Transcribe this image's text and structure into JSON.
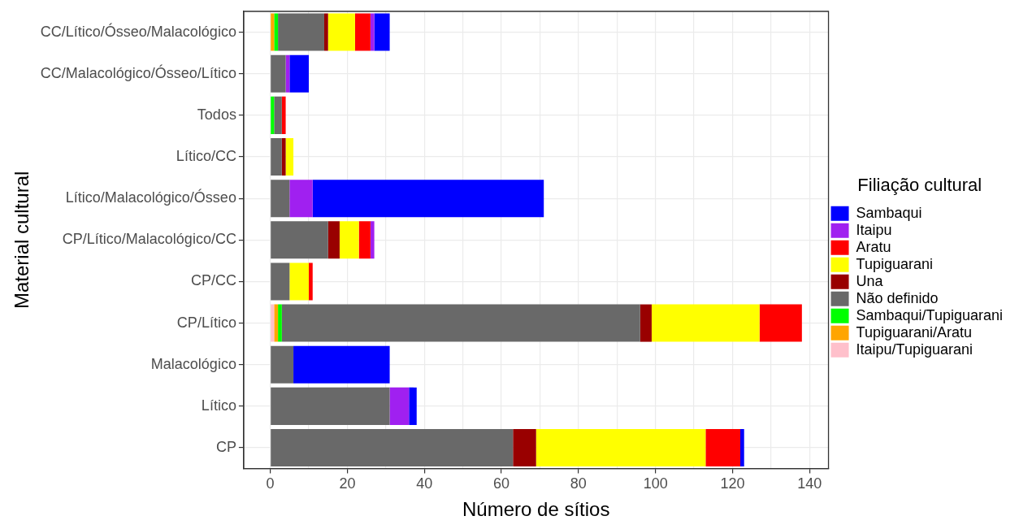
{
  "chart_data": {
    "type": "bar",
    "orientation": "horizontal",
    "stacked": true,
    "xlabel": "Número de sítios",
    "ylabel": "Material cultural",
    "legend_title": "Filiação cultural",
    "categories": [
      "CC/Lítico/Ósseo/Malacológico",
      "CC/Malacológico/Ósseo/Lítico",
      "Todos",
      "Lítico/CC",
      "Lítico/Malacológico/Ósseo",
      "CP/Lítico/Malacológico/CC",
      "CP/CC",
      "CP/Lítico",
      "Malacológico",
      "Lítico",
      "CP"
    ],
    "series": [
      {
        "name": "Itaipu/Tupiguarani",
        "color": "#ffc0cb",
        "values": [
          0,
          0,
          0,
          0,
          0,
          0,
          0,
          1,
          0,
          0,
          0
        ]
      },
      {
        "name": "Tupiguarani/Aratu",
        "color": "#ffa500",
        "values": [
          1,
          0,
          0,
          0,
          0,
          0,
          0,
          1,
          0,
          0,
          0
        ]
      },
      {
        "name": "Sambaqui/Tupiguarani",
        "color": "#00ff00",
        "values": [
          1,
          0,
          1,
          0,
          0,
          0,
          0,
          1,
          0,
          0,
          0
        ]
      },
      {
        "name": "Não definido",
        "color": "#696969",
        "values": [
          12,
          4,
          2,
          3,
          5,
          15,
          5,
          93,
          6,
          31,
          63
        ]
      },
      {
        "name": "Una",
        "color": "#990000",
        "values": [
          1,
          0,
          0,
          1,
          0,
          3,
          0,
          3,
          0,
          0,
          6
        ]
      },
      {
        "name": "Tupiguarani",
        "color": "#ffff00",
        "values": [
          7,
          0,
          0,
          2,
          0,
          5,
          5,
          28,
          0,
          0,
          44
        ]
      },
      {
        "name": "Aratu",
        "color": "#ff0000",
        "values": [
          4,
          0,
          1,
          0,
          0,
          3,
          1,
          11,
          0,
          0,
          9
        ]
      },
      {
        "name": "Itaipu",
        "color": "#a020f0",
        "values": [
          1,
          1,
          0,
          0,
          6,
          1,
          0,
          0,
          0,
          5,
          0
        ]
      },
      {
        "name": "Sambaqui",
        "color": "#0000ff",
        "values": [
          4,
          5,
          0,
          0,
          60,
          0,
          0,
          0,
          25,
          2,
          1
        ]
      }
    ],
    "xlim": [
      -6.9,
      144.9
    ],
    "xticks": [
      0,
      {
        "value": 10,
        "label": null
      },
      20,
      {
        "value": 30,
        "label": null
      },
      40,
      {
        "value": 50,
        "label": null
      },
      60,
      {
        "value": 70,
        "label": null
      },
      80,
      {
        "value": 90,
        "label": null
      },
      100,
      {
        "value": 110,
        "label": null
      },
      120,
      {
        "value": 130,
        "label": null
      },
      140
    ],
    "grid": true,
    "legend": "right"
  }
}
